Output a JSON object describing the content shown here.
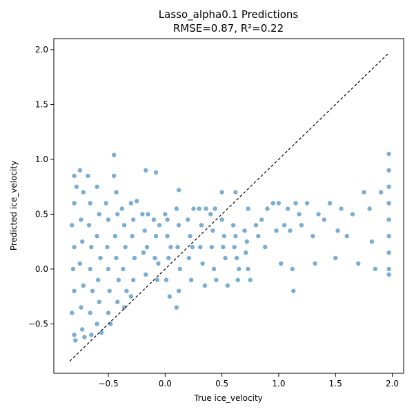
{
  "chart_data": {
    "type": "scatter",
    "title": "Lasso_alpha0.1 Predictions",
    "subtitle": "RMSE=0.87, R²=0.22",
    "xlabel": "True ice_velocity",
    "ylabel": "Predicted ice_velocity",
    "xlim": [
      -0.98,
      2.1
    ],
    "ylim": [
      -0.95,
      2.1
    ],
    "xticks": [
      -0.5,
      0.0,
      0.5,
      1.0,
      1.5,
      2.0
    ],
    "xtick_labels": [
      "−0.5",
      "0.0",
      "0.5",
      "1.0",
      "1.5",
      "2.0"
    ],
    "yticks": [
      -0.5,
      0.0,
      0.5,
      1.0,
      1.5,
      2.0
    ],
    "ytick_labels": [
      "−0.5",
      "0.0",
      "0.5",
      "1.0",
      "1.5",
      "2.0"
    ],
    "grid": false,
    "point_color": "#1f77b4",
    "reference_line": {
      "x": [
        -0.84,
        1.97
      ],
      "y": [
        -0.84,
        1.97
      ],
      "style": "dashed",
      "color": "#000000"
    },
    "series": [
      {
        "points": [
          [
            -0.8,
            0.85
          ],
          [
            -0.78,
            0.75
          ],
          [
            -0.8,
            0.6
          ],
          [
            -0.82,
            0.4
          ],
          [
            -0.8,
            0.2
          ],
          [
            -0.81,
            0.0
          ],
          [
            -0.8,
            -0.2
          ],
          [
            -0.82,
            -0.4
          ],
          [
            -0.8,
            -0.6
          ],
          [
            -0.79,
            -0.65
          ],
          [
            -0.75,
            0.9
          ],
          [
            -0.72,
            0.7
          ],
          [
            -0.74,
            0.45
          ],
          [
            -0.73,
            0.25
          ],
          [
            -0.75,
            0.05
          ],
          [
            -0.72,
            -0.15
          ],
          [
            -0.74,
            -0.35
          ],
          [
            -0.73,
            -0.55
          ],
          [
            -0.71,
            -0.62
          ],
          [
            -0.68,
            0.85
          ],
          [
            -0.66,
            0.6
          ],
          [
            -0.67,
            0.4
          ],
          [
            -0.65,
            0.2
          ],
          [
            -0.66,
            0.0
          ],
          [
            -0.64,
            -0.2
          ],
          [
            -0.66,
            -0.4
          ],
          [
            -0.65,
            -0.6
          ],
          [
            -0.6,
            0.75
          ],
          [
            -0.58,
            0.5
          ],
          [
            -0.6,
            0.3
          ],
          [
            -0.57,
            0.1
          ],
          [
            -0.59,
            -0.1
          ],
          [
            -0.58,
            -0.3
          ],
          [
            -0.6,
            -0.5
          ],
          [
            -0.56,
            -0.58
          ],
          [
            -0.52,
            0.6
          ],
          [
            -0.5,
            0.45
          ],
          [
            -0.51,
            0.2
          ],
          [
            -0.5,
            0.0
          ],
          [
            -0.49,
            -0.2
          ],
          [
            -0.5,
            -0.4
          ],
          [
            -0.48,
            -0.5
          ],
          [
            -0.45,
            0.85
          ],
          [
            -0.43,
            0.7
          ],
          [
            -0.42,
            0.5
          ],
          [
            -0.44,
            0.3
          ],
          [
            -0.43,
            0.1
          ],
          [
            -0.41,
            -0.1
          ],
          [
            -0.42,
            -0.3
          ],
          [
            -0.45,
            1.04
          ],
          [
            -0.38,
            0.55
          ],
          [
            -0.36,
            0.4
          ],
          [
            -0.35,
            0.2
          ],
          [
            -0.37,
            0.0
          ],
          [
            -0.34,
            -0.2
          ],
          [
            -0.36,
            -0.35
          ],
          [
            -0.3,
            0.6
          ],
          [
            -0.28,
            0.45
          ],
          [
            -0.29,
            0.3
          ],
          [
            -0.27,
            0.1
          ],
          [
            -0.28,
            -0.1
          ],
          [
            -0.3,
            -0.25
          ],
          [
            -0.25,
            0.62
          ],
          [
            -0.2,
            0.5
          ],
          [
            -0.18,
            0.35
          ],
          [
            -0.19,
            0.15
          ],
          [
            -0.17,
            -0.05
          ],
          [
            -0.16,
            0.2
          ],
          [
            -0.15,
            0.5
          ],
          [
            -0.17,
            0.9
          ],
          [
            -0.1,
            0.45
          ],
          [
            -0.08,
            0.3
          ],
          [
            -0.09,
            0.1
          ],
          [
            -0.07,
            -0.1
          ],
          [
            -0.06,
            0.05
          ],
          [
            -0.05,
            0.4
          ],
          [
            -0.08,
            0.88
          ],
          [
            0.0,
            0.5
          ],
          [
            0.02,
            0.3
          ],
          [
            0.03,
            0.1
          ],
          [
            0.01,
            -0.1
          ],
          [
            0.04,
            -0.25
          ],
          [
            0.02,
            0.45
          ],
          [
            0.05,
            0.2
          ],
          [
            0.1,
            0.55
          ],
          [
            0.12,
            0.4
          ],
          [
            0.11,
            0.2
          ],
          [
            0.13,
            0.0
          ],
          [
            0.12,
            -0.2
          ],
          [
            0.1,
            -0.35
          ],
          [
            0.12,
            0.72
          ],
          [
            0.2,
            0.45
          ],
          [
            0.22,
            0.3
          ],
          [
            0.21,
            0.1
          ],
          [
            0.23,
            -0.1
          ],
          [
            0.25,
            0.55
          ],
          [
            0.24,
            0.2
          ],
          [
            0.3,
            0.55
          ],
          [
            0.32,
            0.4
          ],
          [
            0.31,
            0.2
          ],
          [
            0.33,
            0.05
          ],
          [
            0.35,
            -0.15
          ],
          [
            0.36,
            0.55
          ],
          [
            0.4,
            0.5
          ],
          [
            0.42,
            0.35
          ],
          [
            0.41,
            0.2
          ],
          [
            0.43,
            0.0
          ],
          [
            0.45,
            -0.1
          ],
          [
            0.44,
            0.55
          ],
          [
            0.5,
            0.45
          ],
          [
            0.52,
            0.3
          ],
          [
            0.51,
            0.2
          ],
          [
            0.53,
            0.1
          ],
          [
            0.55,
            -0.15
          ],
          [
            0.5,
            0.7
          ],
          [
            0.6,
            0.4
          ],
          [
            0.62,
            0.3
          ],
          [
            0.61,
            0.2
          ],
          [
            0.63,
            0.1
          ],
          [
            0.65,
            0.0
          ],
          [
            0.64,
            -0.1
          ],
          [
            0.62,
            0.7
          ],
          [
            0.7,
            0.35
          ],
          [
            0.72,
            0.25
          ],
          [
            0.71,
            0.15
          ],
          [
            0.73,
            0.0
          ],
          [
            0.75,
            -0.1
          ],
          [
            0.73,
            0.55
          ],
          [
            0.8,
            0.4
          ],
          [
            0.82,
            0.3
          ],
          [
            0.85,
            0.45
          ],
          [
            0.88,
            0.2
          ],
          [
            0.9,
            0.55
          ],
          [
            0.95,
            0.6
          ],
          [
            0.98,
            0.35
          ],
          [
            1.0,
            0.6
          ],
          [
            1.02,
            0.05
          ],
          [
            1.05,
            0.4
          ],
          [
            1.08,
            0.55
          ],
          [
            1.1,
            0.35
          ],
          [
            1.12,
            0.0
          ],
          [
            1.13,
            -0.2
          ],
          [
            1.15,
            0.6
          ],
          [
            1.18,
            0.5
          ],
          [
            1.2,
            0.4
          ],
          [
            1.25,
            0.6
          ],
          [
            1.3,
            0.3
          ],
          [
            1.32,
            0.05
          ],
          [
            1.35,
            0.5
          ],
          [
            1.4,
            0.45
          ],
          [
            1.45,
            0.6
          ],
          [
            1.5,
            0.1
          ],
          [
            1.52,
            0.35
          ],
          [
            1.55,
            0.55
          ],
          [
            1.6,
            0.3
          ],
          [
            1.65,
            0.5
          ],
          [
            1.7,
            0.05
          ],
          [
            1.75,
            0.7
          ],
          [
            1.8,
            0.55
          ],
          [
            1.82,
            0.25
          ],
          [
            1.85,
            0.0
          ],
          [
            1.9,
            0.7
          ],
          [
            1.97,
            1.05
          ],
          [
            1.97,
            0.9
          ],
          [
            1.97,
            0.75
          ],
          [
            1.97,
            0.6
          ],
          [
            1.97,
            0.45
          ],
          [
            1.97,
            0.3
          ],
          [
            1.97,
            0.15
          ],
          [
            1.97,
            0.0
          ],
          [
            1.97,
            -0.05
          ]
        ]
      }
    ]
  }
}
